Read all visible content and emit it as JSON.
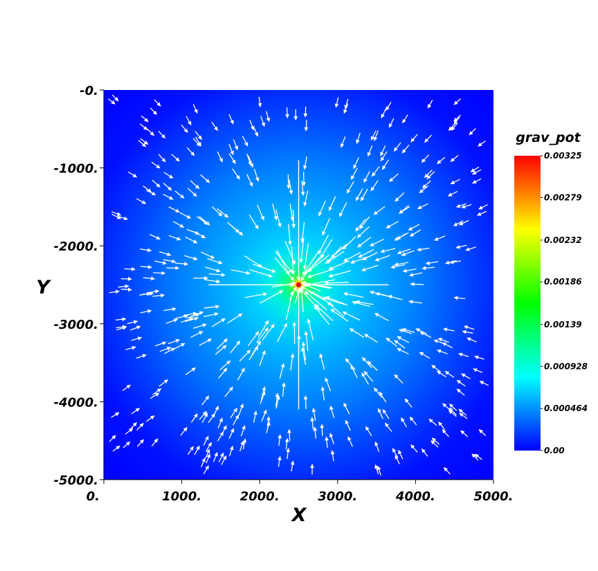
{
  "chart_data": {
    "type": "heatmap",
    "subtype": "scalar field with vector glyphs",
    "field_name": "grav_pot",
    "xlabel": "X",
    "ylabel": "Y",
    "xlim": [
      0,
      5000
    ],
    "ylim": [
      -5000,
      0
    ],
    "x_ticks": [
      0,
      1000,
      2000,
      3000,
      4000,
      5000
    ],
    "y_ticks": [
      0,
      -1000,
      -2000,
      -3000,
      -4000,
      -5000
    ],
    "x_tick_labels": [
      "0.",
      "1000.",
      "2000.",
      "3000.",
      "4000.",
      "5000."
    ],
    "y_tick_labels": [
      "-0.",
      "-1000.",
      "-2000.",
      "-3000.",
      "-4000.",
      "-5000."
    ],
    "point_source": {
      "x": 2500,
      "y": -2500
    },
    "colorbar": {
      "title": "grav_pot",
      "min": 0.0,
      "max": 0.00325,
      "tick_values": [
        0.00325,
        0.00279,
        0.00232,
        0.00186,
        0.00139,
        0.000928,
        0.000464,
        0.0
      ],
      "tick_labels": [
        "0.00325",
        "0.00279",
        "0.00232",
        "0.00186",
        "0.00139",
        "0.000928",
        "0.000464",
        "0.00"
      ],
      "colors": [
        "#0000ff",
        "#00ffff",
        "#00ff00",
        "#ffff00",
        "#ff0000"
      ]
    },
    "vectors": {
      "color": "#ffffff",
      "direction": "toward point source"
    },
    "grid": false
  }
}
